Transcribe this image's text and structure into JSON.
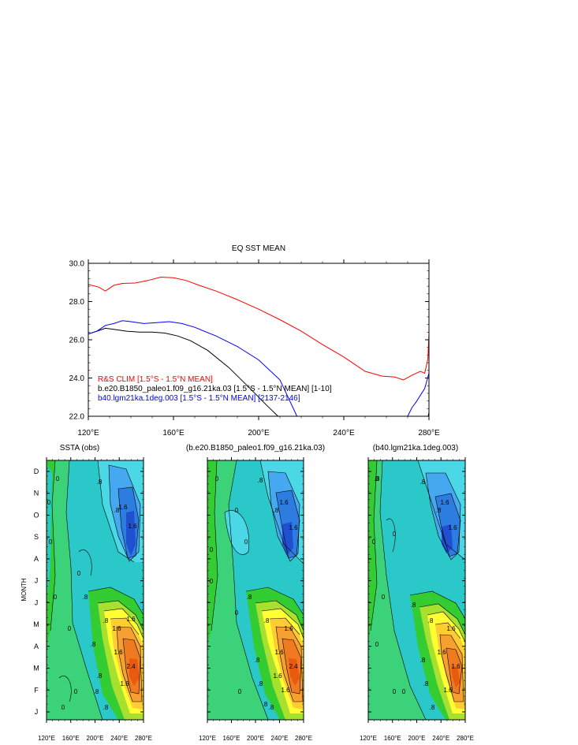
{
  "chart_data": [
    {
      "type": "line",
      "title": "EQ SST MEAN",
      "xlabel": "",
      "ylabel": "",
      "xlim": [
        120,
        280
      ],
      "ylim": [
        22,
        30
      ],
      "x_ticks": [
        120,
        160,
        200,
        240,
        280
      ],
      "x_tick_labels": [
        "120°E",
        "160°E",
        "200°E",
        "240°E",
        "280°E"
      ],
      "y_ticks": [
        22,
        24,
        26,
        28,
        30
      ],
      "y_tick_labels": [
        "22.0",
        "24.0",
        "26.0",
        "28.0",
        "30.0"
      ],
      "legend_placement": "bottom-left",
      "series": [
        {
          "name": "R&S CLIM [1.5°S - 1.5°N MEAN]",
          "color": "#ff0000",
          "x": [
            120,
            125,
            128,
            132,
            136,
            142,
            148,
            154,
            160,
            166,
            172,
            180,
            190,
            200,
            210,
            220,
            230,
            240,
            250,
            258,
            264,
            268,
            272,
            276,
            278,
            279.5,
            280
          ],
          "y": [
            28.9,
            28.75,
            28.55,
            28.85,
            28.95,
            28.97,
            29.1,
            29.28,
            29.25,
            29.1,
            28.85,
            28.55,
            28.1,
            27.6,
            27.05,
            26.45,
            25.75,
            25.1,
            24.35,
            24.1,
            24.05,
            23.9,
            24.15,
            24.35,
            24.25,
            25.0,
            26.3
          ]
        },
        {
          "name": "b.e20.B1850_paleo1.f09_g16.21ka.03 [1.5°S - 1.5°N MEAN] [1-10]",
          "color": "#000000",
          "x": [
            120,
            124,
            128,
            132,
            138,
            144,
            150,
            156,
            162,
            168,
            176,
            186,
            196,
            204,
            210,
            279.3,
            280
          ],
          "y": [
            26.3,
            26.45,
            26.6,
            26.55,
            26.45,
            26.4,
            26.4,
            26.35,
            26.2,
            25.95,
            25.45,
            24.55,
            23.45,
            22.55,
            21.9,
            21.8,
            22.2
          ]
        },
        {
          "name": "b40.lgm21ka.1deg.003 [1.5°S - 1.5°N MEAN] [2137-2146]",
          "color": "#0000ff",
          "x": [
            120,
            124,
            128,
            132,
            136,
            140,
            146,
            152,
            158,
            164,
            170,
            180,
            190,
            200,
            210,
            218,
            270,
            272,
            274,
            276,
            278,
            280
          ],
          "y": [
            26.3,
            26.45,
            26.75,
            26.85,
            27.0,
            26.95,
            26.85,
            26.9,
            26.95,
            26.85,
            26.65,
            26.2,
            25.65,
            24.95,
            23.9,
            22.0,
            22.0,
            22.45,
            22.75,
            23.1,
            23.45,
            24.25
          ]
        }
      ]
    },
    {
      "type": "heatmap",
      "title": "SSTA (obs)",
      "ylabel": "MONTH",
      "x_tick_labels": [
        "120°E",
        "160°E",
        "200°E",
        "240°E",
        "280°E"
      ],
      "y_tick_labels": [
        "J",
        "F",
        "M",
        "A",
        "M",
        "J",
        "J",
        "A",
        "S",
        "O",
        "N",
        "D"
      ],
      "contour_labels": [
        "0",
        "0",
        "0",
        "0",
        "0",
        "0",
        ".8",
        ".8",
        ".8",
        "1.6",
        "1.6",
        ".8",
        "1.6",
        "1.6",
        "2.4",
        "0",
        "0",
        ".8",
        ".8",
        "1.6",
        "1.6",
        ".8",
        ".8"
      ]
    },
    {
      "type": "heatmap",
      "title": "(b.e20.B1850_paleo1.f09_g16.21ka.03)",
      "x_tick_labels": [
        "120°E",
        "160°E",
        "200°E",
        "240°E",
        "280°E"
      ],
      "contour_labels": [
        "0",
        "0",
        "0",
        "0",
        "0",
        ".8",
        ".8",
        ".8",
        "1.6",
        "1.6",
        ".8",
        "1.6",
        "2.4",
        "1.6",
        "0",
        "0",
        ".8",
        ".8",
        "1.6",
        "1.6",
        ".8",
        ".8"
      ]
    },
    {
      "type": "heatmap",
      "title": "(b40.lgm21ka.1deg.003)",
      "x_tick_labels": [
        "120°E",
        "160°E",
        "200°E",
        "240°E",
        "280°E"
      ],
      "contour_labels": [
        "0",
        "0",
        "0",
        "0",
        "0",
        ".8",
        ".8",
        ".8",
        "1.6",
        "1.6",
        ".8",
        "1.6",
        "1.6",
        "0",
        "0",
        ".8",
        ".8",
        "1.6",
        "1.6",
        ".8",
        ".8"
      ]
    }
  ]
}
